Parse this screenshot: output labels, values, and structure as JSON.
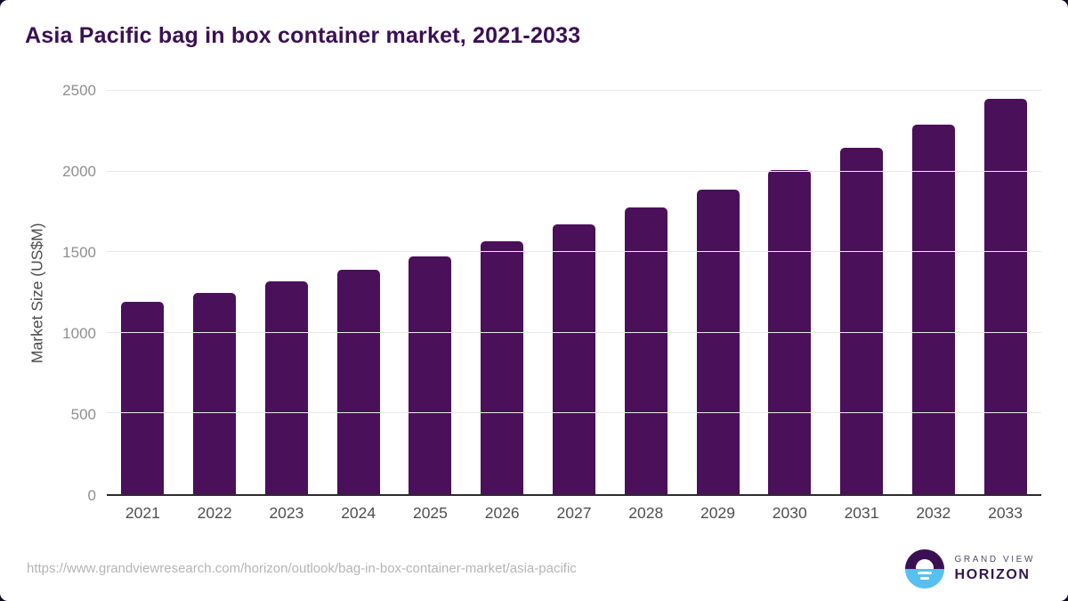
{
  "title": "Asia Pacific bag in box container market, 2021-2033",
  "chart_data": {
    "type": "bar",
    "title": "Asia Pacific bag in box container market, 2021-2033",
    "categories": [
      "2021",
      "2022",
      "2023",
      "2024",
      "2025",
      "2026",
      "2027",
      "2028",
      "2029",
      "2030",
      "2031",
      "2032",
      "2033"
    ],
    "values": [
      1190,
      1250,
      1320,
      1390,
      1475,
      1570,
      1670,
      1775,
      1885,
      2010,
      2145,
      2290,
      2450
    ],
    "xlabel": "",
    "ylabel": "Market Size (US$M)",
    "ylim": [
      0,
      2500
    ],
    "yticks": [
      0,
      500,
      1000,
      1500,
      2000,
      2500
    ],
    "grid": true,
    "legend": "none",
    "bar_color": "#4a1059"
  },
  "colors": {
    "title": "#3b1053",
    "bar": "#4a1059",
    "gridline": "#e9e9e9",
    "axis_line": "#2b2b2b",
    "y_tick_label": "#8f8f8f",
    "x_tick_label": "#4f4f4f",
    "footer_url": "#b5b5b5",
    "logo_purple": "#3b1053",
    "logo_blue": "#57c0ee",
    "page_corner_bg": "#120826"
  },
  "footer": {
    "source_url": "https://www.grandviewresearch.com/horizon/outlook/bag-in-box-container-market/asia-pacific",
    "logo": {
      "line1": "GRAND VIEW",
      "line2": "HORIZON"
    }
  }
}
